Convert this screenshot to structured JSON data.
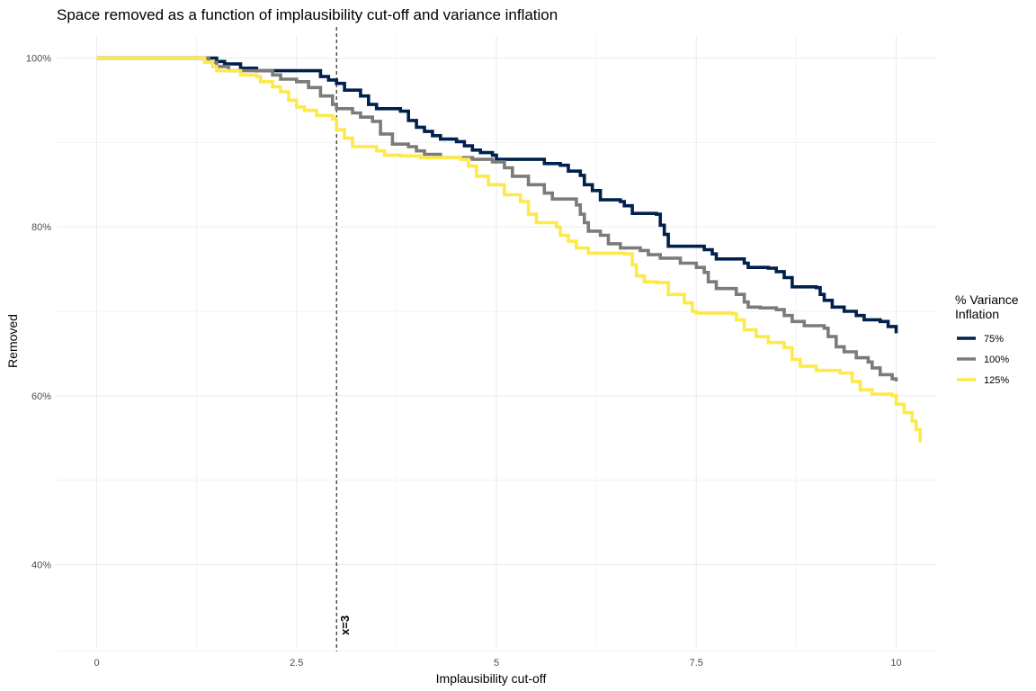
{
  "chart_data": {
    "type": "line",
    "title": "Space removed as a function of implausibility cut-off and variance inflation",
    "xlabel": "Implausibility cut-off",
    "ylabel": "Removed",
    "xlim": [
      -0.5,
      10.5
    ],
    "ylim": [
      0.3,
      1.035
    ],
    "x_ticks": [
      0,
      2.5,
      5,
      7.5,
      10
    ],
    "x_tick_labels": [
      "0",
      "2.5",
      "5",
      "7.5",
      "10"
    ],
    "y_ticks": [
      0.4,
      0.6,
      0.8,
      1.0
    ],
    "y_tick_labels": [
      "40%",
      "60%",
      "80%",
      "100%"
    ],
    "y_minor": [
      0.5,
      0.7,
      0.9
    ],
    "grid": true,
    "legend_title": "% Variance\nInflation",
    "legend_position": "right",
    "vline": {
      "x": 3,
      "label": "x=3",
      "style": "dashed"
    },
    "series": [
      {
        "name": "75%",
        "color": "#00204d",
        "points": [
          [
            0,
            1.0
          ],
          [
            1.2,
            1.0
          ],
          [
            1.5,
            0.996
          ],
          [
            1.6,
            0.993
          ],
          [
            1.8,
            0.988
          ],
          [
            2.0,
            0.985
          ],
          [
            2.4,
            0.985
          ],
          [
            2.7,
            0.985
          ],
          [
            2.8,
            0.978
          ],
          [
            2.9,
            0.974
          ],
          [
            3.0,
            0.97
          ],
          [
            3.1,
            0.962
          ],
          [
            3.3,
            0.955
          ],
          [
            3.4,
            0.945
          ],
          [
            3.5,
            0.94
          ],
          [
            3.8,
            0.937
          ],
          [
            3.9,
            0.926
          ],
          [
            4.0,
            0.918
          ],
          [
            4.1,
            0.913
          ],
          [
            4.2,
            0.908
          ],
          [
            4.3,
            0.904
          ],
          [
            4.5,
            0.901
          ],
          [
            4.6,
            0.896
          ],
          [
            4.7,
            0.891
          ],
          [
            4.8,
            0.888
          ],
          [
            4.95,
            0.885
          ],
          [
            5.0,
            0.88
          ],
          [
            5.5,
            0.88
          ],
          [
            5.6,
            0.875
          ],
          [
            5.8,
            0.873
          ],
          [
            5.9,
            0.866
          ],
          [
            6.05,
            0.861
          ],
          [
            6.1,
            0.85
          ],
          [
            6.2,
            0.843
          ],
          [
            6.3,
            0.832
          ],
          [
            6.55,
            0.83
          ],
          [
            6.6,
            0.825
          ],
          [
            6.7,
            0.816
          ],
          [
            7.0,
            0.815
          ],
          [
            7.05,
            0.802
          ],
          [
            7.1,
            0.791
          ],
          [
            7.15,
            0.777
          ],
          [
            7.5,
            0.777
          ],
          [
            7.6,
            0.773
          ],
          [
            7.7,
            0.768
          ],
          [
            7.75,
            0.762
          ],
          [
            8.1,
            0.757
          ],
          [
            8.15,
            0.752
          ],
          [
            8.4,
            0.751
          ],
          [
            8.5,
            0.747
          ],
          [
            8.6,
            0.74
          ],
          [
            8.7,
            0.729
          ],
          [
            9.0,
            0.728
          ],
          [
            9.05,
            0.72
          ],
          [
            9.1,
            0.713
          ],
          [
            9.2,
            0.705
          ],
          [
            9.35,
            0.7
          ],
          [
            9.5,
            0.695
          ],
          [
            9.6,
            0.69
          ],
          [
            9.8,
            0.688
          ],
          [
            9.9,
            0.682
          ],
          [
            10.0,
            0.679
          ],
          [
            10.0,
            0.674
          ]
        ]
      },
      {
        "name": "100%",
        "color": "#7c7b78",
        "points": [
          [
            0,
            1.0
          ],
          [
            1.2,
            1.0
          ],
          [
            1.4,
            0.995
          ],
          [
            1.5,
            0.99
          ],
          [
            1.65,
            0.985
          ],
          [
            2.1,
            0.985
          ],
          [
            2.2,
            0.98
          ],
          [
            2.3,
            0.975
          ],
          [
            2.5,
            0.972
          ],
          [
            2.65,
            0.965
          ],
          [
            2.8,
            0.955
          ],
          [
            2.95,
            0.945
          ],
          [
            3.0,
            0.94
          ],
          [
            3.2,
            0.935
          ],
          [
            3.3,
            0.93
          ],
          [
            3.45,
            0.925
          ],
          [
            3.55,
            0.91
          ],
          [
            3.7,
            0.898
          ],
          [
            3.9,
            0.895
          ],
          [
            4.0,
            0.89
          ],
          [
            4.1,
            0.886
          ],
          [
            4.3,
            0.882
          ],
          [
            4.7,
            0.88
          ],
          [
            4.95,
            0.877
          ],
          [
            5.1,
            0.87
          ],
          [
            5.2,
            0.86
          ],
          [
            5.4,
            0.85
          ],
          [
            5.6,
            0.84
          ],
          [
            5.7,
            0.833
          ],
          [
            6.0,
            0.826
          ],
          [
            6.05,
            0.815
          ],
          [
            6.1,
            0.805
          ],
          [
            6.15,
            0.795
          ],
          [
            6.3,
            0.79
          ],
          [
            6.4,
            0.78
          ],
          [
            6.55,
            0.775
          ],
          [
            6.8,
            0.772
          ],
          [
            6.9,
            0.767
          ],
          [
            7.05,
            0.763
          ],
          [
            7.3,
            0.757
          ],
          [
            7.5,
            0.752
          ],
          [
            7.6,
            0.746
          ],
          [
            7.65,
            0.735
          ],
          [
            7.75,
            0.727
          ],
          [
            8.0,
            0.72
          ],
          [
            8.1,
            0.711
          ],
          [
            8.15,
            0.705
          ],
          [
            8.3,
            0.704
          ],
          [
            8.5,
            0.702
          ],
          [
            8.6,
            0.695
          ],
          [
            8.7,
            0.688
          ],
          [
            8.85,
            0.683
          ],
          [
            9.1,
            0.68
          ],
          [
            9.15,
            0.67
          ],
          [
            9.25,
            0.658
          ],
          [
            9.35,
            0.652
          ],
          [
            9.5,
            0.645
          ],
          [
            9.65,
            0.64
          ],
          [
            9.7,
            0.633
          ],
          [
            9.8,
            0.625
          ],
          [
            9.95,
            0.62
          ],
          [
            10.0,
            0.617
          ]
        ]
      },
      {
        "name": "125%",
        "color": "#fde948",
        "points": [
          [
            0,
            1.0
          ],
          [
            1.2,
            1.0
          ],
          [
            1.35,
            0.995
          ],
          [
            1.45,
            0.99
          ],
          [
            1.5,
            0.985
          ],
          [
            1.75,
            0.985
          ],
          [
            1.8,
            0.98
          ],
          [
            2.0,
            0.978
          ],
          [
            2.05,
            0.972
          ],
          [
            2.2,
            0.966
          ],
          [
            2.3,
            0.96
          ],
          [
            2.4,
            0.95
          ],
          [
            2.5,
            0.942
          ],
          [
            2.6,
            0.938
          ],
          [
            2.75,
            0.932
          ],
          [
            2.95,
            0.928
          ],
          [
            3.0,
            0.915
          ],
          [
            3.1,
            0.905
          ],
          [
            3.2,
            0.895
          ],
          [
            3.5,
            0.89
          ],
          [
            3.6,
            0.885
          ],
          [
            3.8,
            0.884
          ],
          [
            4.05,
            0.882
          ],
          [
            4.55,
            0.88
          ],
          [
            4.65,
            0.872
          ],
          [
            4.75,
            0.86
          ],
          [
            4.9,
            0.85
          ],
          [
            5.1,
            0.838
          ],
          [
            5.3,
            0.83
          ],
          [
            5.4,
            0.815
          ],
          [
            5.5,
            0.805
          ],
          [
            5.75,
            0.8
          ],
          [
            5.8,
            0.79
          ],
          [
            5.9,
            0.783
          ],
          [
            6.0,
            0.775
          ],
          [
            6.15,
            0.769
          ],
          [
            6.6,
            0.768
          ],
          [
            6.7,
            0.755
          ],
          [
            6.75,
            0.742
          ],
          [
            6.85,
            0.735
          ],
          [
            7.0,
            0.734
          ],
          [
            7.15,
            0.72
          ],
          [
            7.35,
            0.71
          ],
          [
            7.45,
            0.7
          ],
          [
            7.5,
            0.698
          ],
          [
            7.95,
            0.697
          ],
          [
            8.0,
            0.69
          ],
          [
            8.1,
            0.678
          ],
          [
            8.25,
            0.67
          ],
          [
            8.4,
            0.663
          ],
          [
            8.6,
            0.657
          ],
          [
            8.7,
            0.643
          ],
          [
            8.8,
            0.635
          ],
          [
            9.0,
            0.63
          ],
          [
            9.3,
            0.627
          ],
          [
            9.45,
            0.617
          ],
          [
            9.55,
            0.607
          ],
          [
            9.7,
            0.602
          ],
          [
            9.95,
            0.6
          ],
          [
            10.0,
            0.59
          ],
          [
            10.1,
            0.58
          ],
          [
            10.2,
            0.57
          ],
          [
            10.25,
            0.56
          ],
          [
            10.3,
            0.545
          ]
        ]
      }
    ]
  }
}
